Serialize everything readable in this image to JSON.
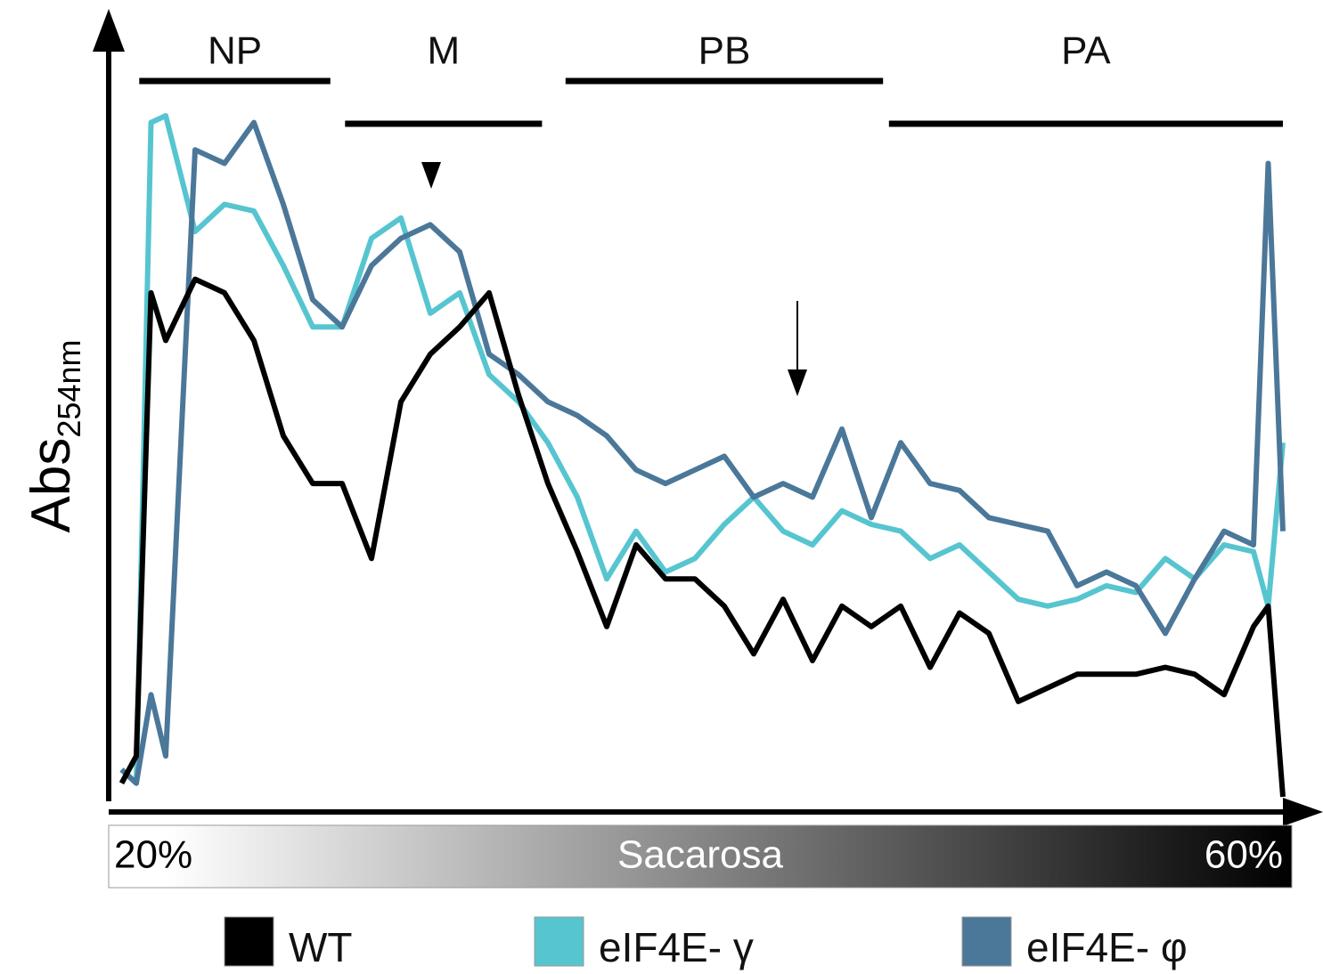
{
  "chart_data": {
    "type": "line",
    "y_label": "Abs",
    "y_label_subscript": "254nm",
    "x_label": "Sacarosa",
    "xlim": [
      20,
      60
    ],
    "xticks": [
      {
        "value": 20,
        "label": "20%"
      },
      {
        "value": 60,
        "label": "60%"
      }
    ],
    "ylim": [
      0,
      100
    ],
    "regions": [
      {
        "label": "NP",
        "x": [
          21.1,
          27.6
        ]
      },
      {
        "label": "M",
        "x": [
          28.1,
          34.8
        ]
      },
      {
        "label": "PB",
        "x": [
          35.6,
          46.4
        ]
      },
      {
        "label": "PA",
        "x": [
          46.6,
          60
        ]
      }
    ],
    "x": [
      20.5,
      21,
      21.5,
      22,
      23,
      24,
      25,
      26,
      27,
      28,
      29,
      30,
      31,
      32,
      33,
      34,
      35,
      36,
      37,
      38,
      39,
      40,
      41,
      42,
      43,
      44,
      45,
      46,
      47,
      48,
      49,
      50,
      51,
      52,
      53,
      54,
      55,
      56,
      57,
      58,
      59,
      59.5,
      60
    ],
    "series": [
      {
        "name": "WT",
        "color": "#000000",
        "values": [
          2,
          6,
          74,
          67,
          76,
          74,
          67,
          53,
          46,
          46,
          35,
          58,
          65,
          69,
          74,
          59,
          46,
          36,
          25,
          37,
          32,
          32,
          28,
          21,
          29,
          20,
          28,
          25,
          28,
          19,
          27,
          24,
          14,
          16,
          18,
          18,
          18,
          19,
          18,
          15,
          25,
          28,
          0
        ]
      },
      {
        "name": "eIF4E- γ",
        "color": "#56c5d0",
        "values": [
          4,
          2,
          99,
          100,
          83,
          87,
          86,
          78,
          69,
          69,
          82,
          85,
          71,
          74,
          62,
          58,
          52,
          44,
          32,
          39,
          33,
          35,
          40,
          44,
          39,
          37,
          42,
          40,
          39,
          35,
          37,
          33,
          29,
          28,
          29,
          31,
          30,
          35,
          32,
          37,
          36,
          28,
          52
        ]
      },
      {
        "name": "eIF4E- φ",
        "color": "#4b7799",
        "values": [
          4,
          2,
          15,
          6,
          95,
          93,
          99,
          87,
          73,
          69,
          78,
          82,
          84,
          80,
          65,
          62,
          58,
          56,
          53,
          48,
          46,
          48,
          50,
          44,
          46,
          44,
          54,
          41,
          52,
          46,
          45,
          41,
          40,
          39,
          31,
          33,
          31,
          24,
          32,
          39,
          37,
          93,
          39
        ]
      }
    ]
  }
}
